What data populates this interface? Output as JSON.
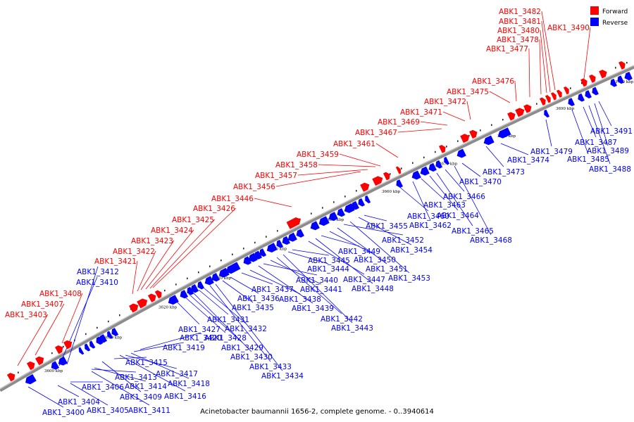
{
  "caption": "Acinetobacter baumannii 1656-2, complete genome. - 0..3940614",
  "legend": [
    {
      "label": "Forward",
      "color": "#ff0000"
    },
    {
      "label": "Reverse",
      "color": "#0000ff"
    }
  ],
  "colors": {
    "forward": "#ff0000",
    "reverse": "#0000ff",
    "backbone": "#808080"
  },
  "tick_labels": [
    "3600 kbp",
    "3610 kbp",
    "3620 kbp",
    "3630 kbp",
    "3640 kbp",
    "3650 kbp",
    "3660 kbp",
    "3670 kbp",
    "3680 kbp",
    "3690 kbp",
    "3700 kbp"
  ],
  "forward_genes": [
    "ABK1_3403",
    "ABK1_3407",
    "ABK1_3408",
    "ABK1_3421",
    "ABK1_3422",
    "ABK1_3423",
    "ABK1_3424",
    "ABK1_3425",
    "ABK1_3426",
    "ABK1_3446",
    "ABK1_3456",
    "ABK1_3457",
    "ABK1_3458",
    "ABK1_3459",
    "ABK1_3461",
    "ABK1_3467",
    "ABK1_3469",
    "ABK1_3471",
    "ABK1_3472",
    "ABK1_3475",
    "ABK1_3476",
    "ABK1_3477",
    "ABK1_3478",
    "ABK1_3480",
    "ABK1_3481",
    "ABK1_3482",
    "ABK1_3490"
  ],
  "reverse_genes": [
    "ABK1_3400",
    "ABK1_3404",
    "ABK1_3405",
    "ABK1_3406",
    "ABK1_3409",
    "ABK1_3410",
    "ABK1_3411",
    "ABK1_3412",
    "ABK1_3413",
    "ABK1_3414",
    "ABK1_3415",
    "ABK1_3416",
    "ABK1_3417",
    "ABK1_3418",
    "ABK1_3419",
    "ABK1_3420",
    "ABK1_3427",
    "ABK1_3428",
    "ABK1_3429",
    "ABK1_3430",
    "ABK1_3431",
    "ABK1_3432",
    "ABK1_3433",
    "ABK1_3434",
    "ABK1_3435",
    "ABK1_3436",
    "ABK1_3437",
    "ABK1_3438",
    "ABK1_3439",
    "ABK1_3440",
    "ABK1_3441",
    "ABK1_3442",
    "ABK1_3443",
    "ABK1_3444",
    "ABK1_3445",
    "ABK1_3447",
    "ABK1_3448",
    "ABK1_3449",
    "ABK1_3450",
    "ABK1_3451",
    "ABK1_3452",
    "ABK1_3453",
    "ABK1_3454",
    "ABK1_3455",
    "ABK1_3460",
    "ABK1_3462",
    "ABK1_3463",
    "ABK1_3464",
    "ABK1_3465",
    "ABK1_3466",
    "ABK1_3468",
    "ABK1_3470",
    "ABK1_3473",
    "ABK1_3474",
    "ABK1_3479",
    "ABK1_3485",
    "ABK1_3487",
    "ABK1_3488",
    "ABK1_3489",
    "ABK1_3491"
  ]
}
